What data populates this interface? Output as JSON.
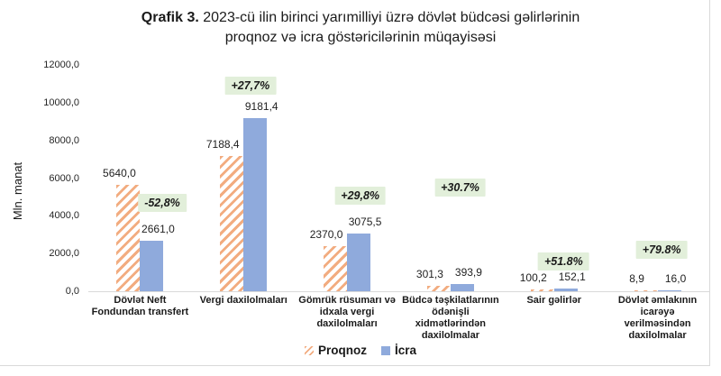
{
  "title": {
    "prefix": "Qrafik 3.",
    "line1_rest": " 2023-cü ilin birinci yarımilliyi üzrə dövlət büdcəsi gəlirlərinin",
    "line2": "proqnoz və icra göstəricilərinin müqayisəsi"
  },
  "chart_data": {
    "type": "bar",
    "title": "Qrafik 3. 2023-cü ilin birinci yarımilliyi üzrə dövlət büdcəsi gəlirlərinin proqnoz və icra göstəricilərinin müqayisəsi",
    "ylabel": "Mln. manat",
    "ylim": [
      0,
      12000
    ],
    "ytick_step": 2000,
    "ytick_labels": [
      "0,0",
      "2000,0",
      "4000,0",
      "6000,0",
      "8000,0",
      "10000,0",
      "12000,0"
    ],
    "grid": false,
    "legend_position": "bottom",
    "categories": [
      "Dövlət Neft\nFondundan transfert",
      "Vergi daxilolmaları",
      "Gömrük rüsumarı və\nidxala vergi\ndaxilolmaları",
      "Büdcə təşkilatlarının\nödənişli\nxidmətlərindən\ndaxilolmalar",
      "Sair gəlirlər",
      "Dövlət əmlakının\nicarəyə\nverilməsindən\ndaxilolmalar"
    ],
    "series": [
      {
        "name": "Proqnoz",
        "style": "hatched-orange",
        "values": [
          5640.0,
          7188.4,
          2370.0,
          301.3,
          100.2,
          8.9
        ],
        "labels": [
          "5640,0",
          "7188,4",
          "2370,0",
          "301,3",
          "100,2",
          "8,9"
        ]
      },
      {
        "name": "İcra",
        "style": "solid-blue",
        "values": [
          2661.0,
          9181.4,
          3075.5,
          393.9,
          152.1,
          16.0
        ],
        "labels": [
          "2661,0",
          "9181,4",
          "3075,5",
          "393,9",
          "152,1",
          "16,0"
        ]
      }
    ],
    "change_badges": [
      "-52,8%",
      "+27,7%",
      "+29,8%",
      "+30.7%",
      "+51.8%",
      "+79.8%"
    ],
    "colors": {
      "proqnoz_hatch": "#F2AC80",
      "icra_fill": "#8FAADC",
      "badge_bg": "#E2EFDA",
      "axis_line": "#D9D9D9",
      "text": "#262626"
    }
  }
}
